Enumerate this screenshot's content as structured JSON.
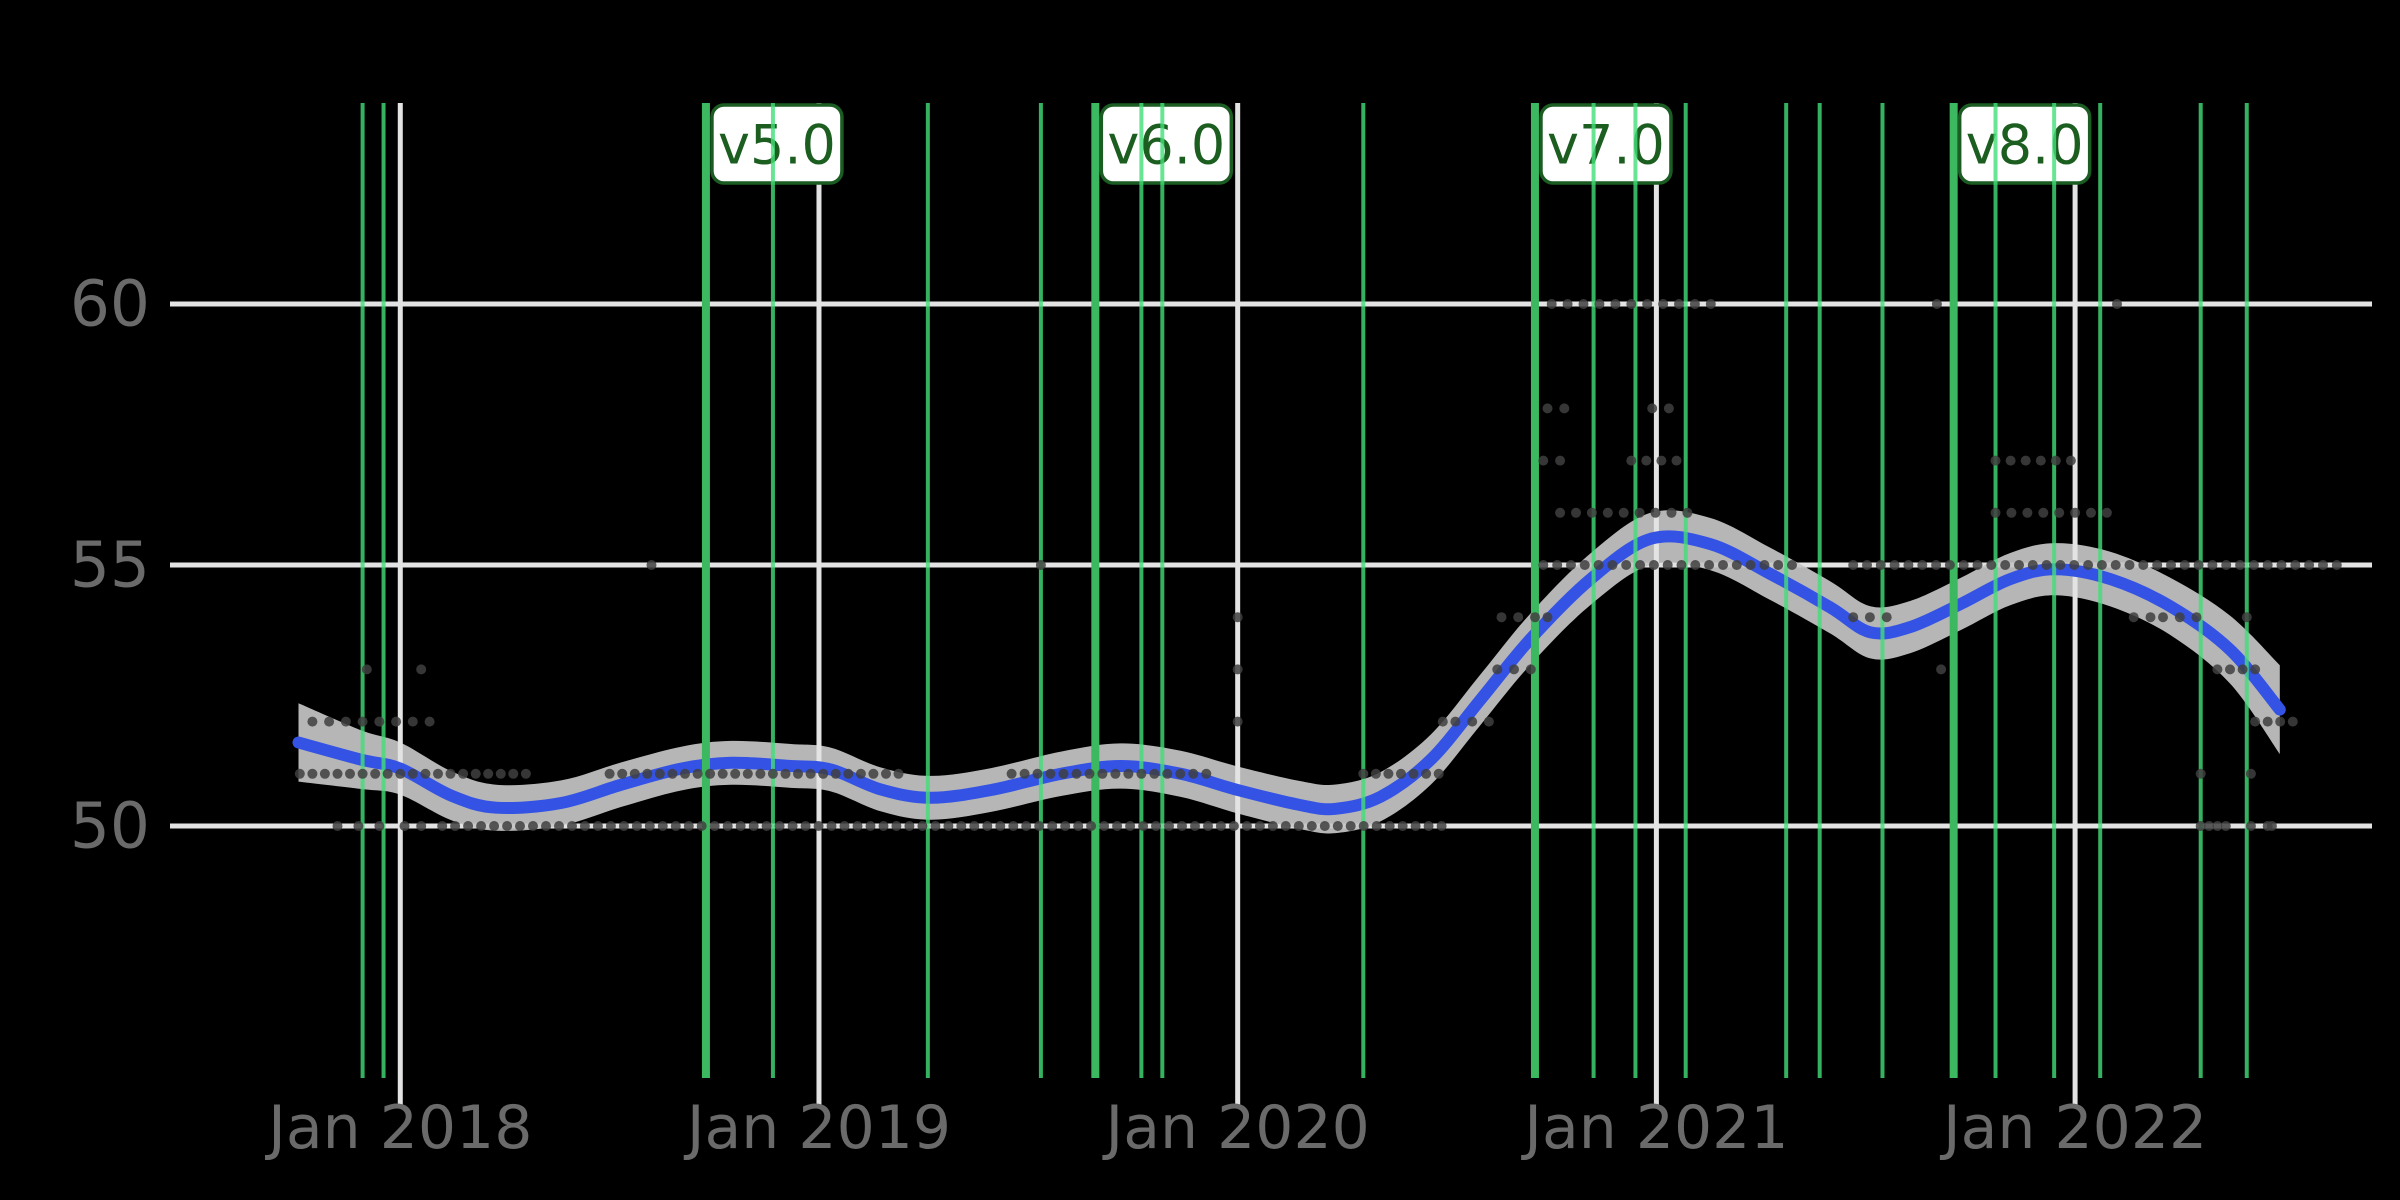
{
  "figure": {
    "background": "#000000",
    "colors": {
      "grid": "#e3e3e3",
      "axis_label": "#6a6a6a",
      "trend_line": "#3453e4",
      "confidence_band": "#c6c6c6",
      "scatter_point": "#3f3f3f",
      "major_release_line": "#3cb861",
      "minor_release_line": "#42df78",
      "label_box_bg": "#ffffff",
      "label_box_border": "#1a5c22",
      "label_box_text": "#1b5e20"
    }
  },
  "chart_data": {
    "type": "scatter",
    "title": "",
    "xlabel": "",
    "ylabel": "",
    "grid": true,
    "legend": null,
    "x_range_years": [
      2017.45,
      2022.72
    ],
    "y_axis_ticks_shown": [
      50,
      55,
      60
    ],
    "x_ticks": [
      {
        "label": "Jan 2018",
        "year": 2018
      },
      {
        "label": "Jan 2019",
        "year": 2019
      },
      {
        "label": "Jan 2020",
        "year": 2020
      },
      {
        "label": "Jan 2021",
        "year": 2021
      },
      {
        "label": "Jan 2022",
        "year": 2022
      }
    ],
    "y_ticks": [
      50,
      55,
      60
    ],
    "releases": {
      "major": [
        {
          "label": "v5.0",
          "t": 2018.73
        },
        {
          "label": "v6.0",
          "t": 2019.66
        },
        {
          "label": "v7.0",
          "t": 2020.71
        },
        {
          "label": "v8.0",
          "t": 2021.71
        }
      ],
      "minor_t": [
        2017.91,
        2017.96,
        2018.89,
        2019.26,
        2019.53,
        2019.77,
        2019.82,
        2020.3,
        2020.85,
        2020.95,
        2021.07,
        2021.31,
        2021.39,
        2021.54,
        2021.81,
        2021.95,
        2022.06,
        2022.3,
        2022.41
      ]
    },
    "smooth_line": [
      [
        2017.757,
        51.6
      ],
      [
        2017.907,
        51.27
      ],
      [
        2018.0,
        51.1
      ],
      [
        2018.122,
        50.58
      ],
      [
        2018.229,
        50.35
      ],
      [
        2018.384,
        50.44
      ],
      [
        2018.527,
        50.79
      ],
      [
        2018.671,
        51.1
      ],
      [
        2018.79,
        51.21
      ],
      [
        2018.933,
        51.15
      ],
      [
        2019.029,
        51.08
      ],
      [
        2019.148,
        50.7
      ],
      [
        2019.267,
        50.54
      ],
      [
        2019.411,
        50.69
      ],
      [
        2019.578,
        51.0
      ],
      [
        2019.721,
        51.15
      ],
      [
        2019.864,
        51.0
      ],
      [
        2020.0,
        50.69
      ],
      [
        2020.15,
        50.4
      ],
      [
        2020.234,
        50.33
      ],
      [
        2020.341,
        50.56
      ],
      [
        2020.461,
        51.27
      ],
      [
        2020.58,
        52.42
      ],
      [
        2020.699,
        53.58
      ],
      [
        2020.843,
        54.73
      ],
      [
        2020.986,
        55.5
      ],
      [
        2021.129,
        55.4
      ],
      [
        2021.272,
        54.83
      ],
      [
        2021.415,
        54.19
      ],
      [
        2021.511,
        53.71
      ],
      [
        2021.606,
        53.81
      ],
      [
        2021.726,
        54.25
      ],
      [
        2021.845,
        54.73
      ],
      [
        2021.952,
        54.92
      ],
      [
        2022.084,
        54.73
      ],
      [
        2022.227,
        54.21
      ],
      [
        2022.37,
        53.38
      ],
      [
        2022.489,
        52.23
      ]
    ],
    "band_halfwidth": [
      [
        2017.757,
        0.75
      ],
      [
        2017.85,
        0.6
      ],
      [
        2018.0,
        0.5
      ],
      [
        2018.23,
        0.44
      ],
      [
        2018.67,
        0.42
      ],
      [
        2019.5,
        0.42
      ],
      [
        2020.0,
        0.45
      ],
      [
        2020.46,
        0.48
      ],
      [
        2020.99,
        0.5
      ],
      [
        2021.51,
        0.5
      ],
      [
        2021.95,
        0.5
      ],
      [
        2022.23,
        0.55
      ],
      [
        2022.37,
        0.65
      ],
      [
        2022.489,
        0.85
      ]
    ],
    "scatter_rows": [
      {
        "value": 50,
        "runs": [
          {
            "from": 2018.1,
            "to": 2020.5,
            "step": 0.031
          }
        ],
        "pts": [
          2017.85,
          2017.9,
          2017.95,
          2018.01,
          2018.05,
          2022.3,
          2022.32,
          2022.34,
          2022.36,
          2022.42,
          2022.46,
          2022.47
        ]
      },
      {
        "value": 51,
        "runs": [
          {
            "from": 2017.76,
            "to": 2018.3,
            "step": 0.03
          },
          {
            "from": 2018.5,
            "to": 2019.2,
            "step": 0.03
          },
          {
            "from": 2019.46,
            "to": 2019.93,
            "step": 0.031
          },
          {
            "from": 2020.3,
            "to": 2020.48,
            "step": 0.03
          }
        ],
        "pts": [
          2022.3,
          2022.42
        ]
      },
      {
        "value": 52,
        "runs": [
          {
            "from": 2017.79,
            "to": 2018.07,
            "step": 0.04
          }
        ],
        "pts": [
          2020.0,
          2020.49,
          2020.52,
          2020.56,
          2020.6,
          2022.43,
          2022.46,
          2022.49,
          2022.52
        ]
      },
      {
        "value": 53,
        "runs": [],
        "pts": [
          2017.92,
          2018.05,
          2020.0,
          2020.62,
          2020.66,
          2020.7,
          2021.68,
          2022.34,
          2022.37,
          2022.4,
          2022.43
        ]
      },
      {
        "value": 54,
        "runs": [],
        "pts": [
          2020.0,
          2020.63,
          2020.67,
          2020.71,
          2020.74,
          2021.47,
          2021.51,
          2021.55,
          2022.14,
          2022.18,
          2022.21,
          2022.25,
          2022.29,
          2022.41
        ]
      },
      {
        "value": 55,
        "runs": [
          {
            "from": 2020.73,
            "to": 2021.34,
            "step": 0.033
          },
          {
            "from": 2021.47,
            "to": 2022.63,
            "step": 0.033
          }
        ],
        "pts": [
          2018.6,
          2019.53
        ]
      },
      {
        "value": 56,
        "runs": [
          {
            "from": 2020.77,
            "to": 2021.08,
            "step": 0.038
          },
          {
            "from": 2021.81,
            "to": 2022.08,
            "step": 0.038
          }
        ],
        "pts": []
      },
      {
        "value": 57,
        "runs": [
          {
            "from": 2020.94,
            "to": 2021.05,
            "step": 0.036
          },
          {
            "from": 2021.81,
            "to": 2021.99,
            "step": 0.036
          }
        ],
        "pts": [
          2020.73,
          2020.77
        ]
      },
      {
        "value": 58,
        "runs": [],
        "pts": [
          2020.74,
          2020.78,
          2020.99,
          2021.03
        ]
      },
      {
        "value": 60,
        "runs": [
          {
            "from": 2020.75,
            "to": 2021.15,
            "step": 0.038
          }
        ],
        "pts": [
          2021.67,
          2022.1
        ]
      }
    ]
  }
}
